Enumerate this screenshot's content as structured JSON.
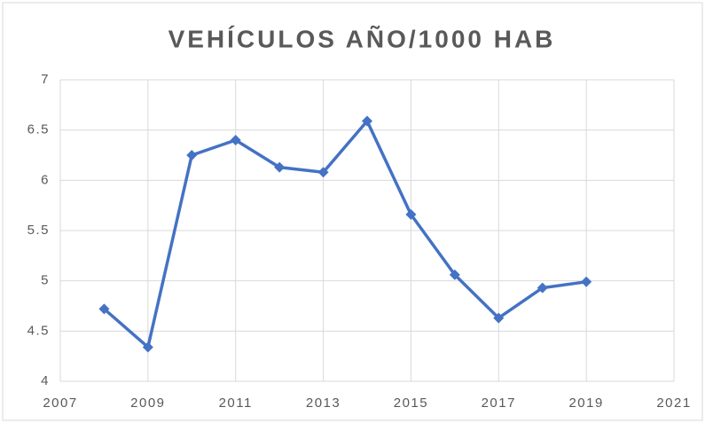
{
  "chart_data": {
    "type": "line",
    "title": "VEHÍCULOS AÑO/1000 HAB",
    "x": [
      2008,
      2009,
      2010,
      2011,
      2012,
      2013,
      2014,
      2015,
      2016,
      2017,
      2018,
      2019
    ],
    "values": [
      4.72,
      4.34,
      6.25,
      6.4,
      6.13,
      6.08,
      6.59,
      5.66,
      5.06,
      4.63,
      4.93,
      4.99
    ],
    "color": "#4472c4",
    "xlim": [
      2007,
      2021
    ],
    "xticks": [
      2007,
      2009,
      2011,
      2013,
      2015,
      2017,
      2019,
      2021
    ],
    "ylim": [
      4,
      7
    ],
    "yticks": [
      4,
      4.5,
      5,
      5.5,
      6,
      6.5,
      7
    ],
    "grid": true
  }
}
